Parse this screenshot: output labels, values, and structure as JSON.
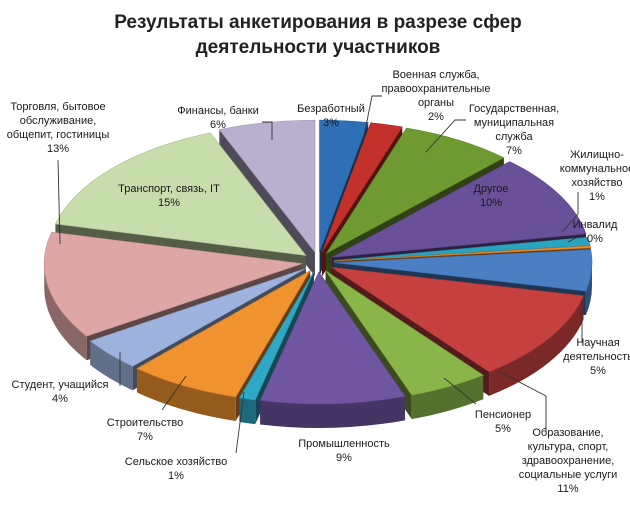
{
  "chart_data": {
    "type": "pie",
    "variant": "3d-exploded",
    "title": "Результаты анкетирования в разрезе сфер деятельности участников",
    "title_lines": [
      "Результаты анкетирования в разрезе сфер",
      "деятельности участников"
    ],
    "unit": "%",
    "slices": [
      {
        "label": "Безработный",
        "label_lines": [
          "Безработный"
        ],
        "value": 3,
        "value_text": "3%",
        "color": "#2e6fb5"
      },
      {
        "label": "Военная служба, правоохранительные органы",
        "label_lines": [
          "Военная служба,",
          "правоохранительные",
          "органы"
        ],
        "value": 2,
        "value_text": "2%",
        "color": "#c4302b"
      },
      {
        "label": "Государственная, муниципальная служба",
        "label_lines": [
          "Государственная,",
          "муниципальная",
          "служба"
        ],
        "value": 7,
        "value_text": "7%",
        "color": "#6f9a32"
      },
      {
        "label": "Другое",
        "label_lines": [
          "Другое"
        ],
        "value": 10,
        "value_text": "10%",
        "color": "#6a4f99"
      },
      {
        "label": "Жилищно-коммунальное хозяйство",
        "label_lines": [
          "Жилищно-",
          "коммунальное",
          "хозяйство"
        ],
        "value": 1,
        "value_text": "1%",
        "color": "#2aa3c1"
      },
      {
        "label": "Инвалид",
        "label_lines": [
          "Инвалид"
        ],
        "value": 0,
        "value_text": "0%",
        "color": "#ee8a2a"
      },
      {
        "label": "Научная деятельность",
        "label_lines": [
          "Научная",
          "деятельность"
        ],
        "value": 5,
        "value_text": "5%",
        "color": "#4a7fc4"
      },
      {
        "label": "Образование, культура, спорт, здравоохранение, социальные услуги",
        "label_lines": [
          "Образование,",
          "культура, спорт,",
          "здравоохранение,",
          "социальные услуги"
        ],
        "value": 11,
        "value_text": "11%",
        "color": "#c64040"
      },
      {
        "label": "Пенсионер",
        "label_lines": [
          "Пенсионер"
        ],
        "value": 5,
        "value_text": "5%",
        "color": "#8ab548"
      },
      {
        "label": "Промышленность",
        "label_lines": [
          "Промышленность"
        ],
        "value": 9,
        "value_text": "9%",
        "color": "#7055a3"
      },
      {
        "label": "Сельское хозяйство",
        "label_lines": [
          "Сельское хозяйство"
        ],
        "value": 1,
        "value_text": "1%",
        "color": "#2fa8c6"
      },
      {
        "label": "Строительство",
        "label_lines": [
          "Строительство"
        ],
        "value": 7,
        "value_text": "7%",
        "color": "#f0922e"
      },
      {
        "label": "Студент, учащийся",
        "label_lines": [
          "Студент, учащийся"
        ],
        "value": 4,
        "value_text": "4%",
        "color": "#9db3de"
      },
      {
        "label": "Торговля, бытовое обслуживание, общепит, гостиницы",
        "label_lines": [
          "Торговля, бытовое",
          "обслуживание,",
          "общепит, гостиницы"
        ],
        "value": 13,
        "value_text": "13%",
        "color": "#dea6a6"
      },
      {
        "label": "Транспорт, связь, IT",
        "label_lines": [
          "Транспорт, связь, IT"
        ],
        "value": 15,
        "value_text": "15%",
        "color": "#c8ddac"
      },
      {
        "label": "Финансы, банки",
        "label_lines": [
          "Финансы, банки"
        ],
        "value": 6,
        "value_text": "6%",
        "color": "#b9afcf"
      }
    ]
  }
}
